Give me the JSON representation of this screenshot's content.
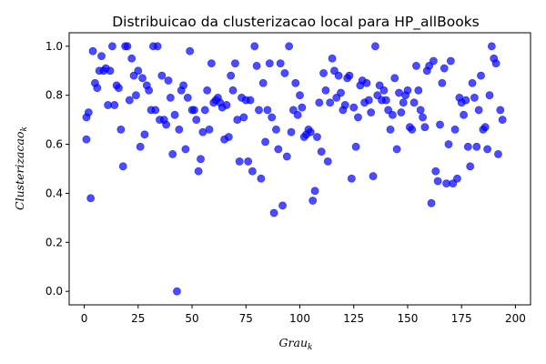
{
  "chart_data": {
    "type": "scatter",
    "title": "Distribuicao da clusterizacao local para HP_allBooks",
    "xlabel": "Grau",
    "xlabel_sub": "k",
    "ylabel": "Clusterizacao",
    "ylabel_sub": "k",
    "xlim": [
      -7,
      207
    ],
    "ylim": [
      -0.055,
      1.055
    ],
    "xticks": [
      0,
      25,
      50,
      75,
      100,
      125,
      150,
      175,
      200
    ],
    "yticks": [
      0.0,
      0.2,
      0.4,
      0.6,
      0.8,
      1.0
    ],
    "ytick_labels": [
      "0.0",
      "0.2",
      "0.4",
      "0.6",
      "0.8",
      "1.0"
    ],
    "grid": false,
    "marker_color": "#0000ff",
    "marker_opacity": 0.7,
    "points": [
      [
        1,
        0.71
      ],
      [
        1,
        0.62
      ],
      [
        2,
        0.73
      ],
      [
        3,
        0.38
      ],
      [
        4,
        0.98
      ],
      [
        5,
        0.85
      ],
      [
        6,
        0.83
      ],
      [
        7,
        0.9
      ],
      [
        8,
        0.96
      ],
      [
        9,
        0.9
      ],
      [
        10,
        0.91
      ],
      [
        11,
        0.76
      ],
      [
        12,
        0.9
      ],
      [
        13,
        1.0
      ],
      [
        14,
        0.76
      ],
      [
        15,
        0.84
      ],
      [
        16,
        0.83
      ],
      [
        17,
        0.66
      ],
      [
        18,
        0.51
      ],
      [
        19,
        1.0
      ],
      [
        20,
        1.0
      ],
      [
        21,
        0.78
      ],
      [
        22,
        0.95
      ],
      [
        23,
        0.88
      ],
      [
        24,
        0.8
      ],
      [
        25,
        0.9
      ],
      [
        26,
        0.59
      ],
      [
        27,
        0.87
      ],
      [
        28,
        0.64
      ],
      [
        29,
        0.84
      ],
      [
        30,
        0.82
      ],
      [
        31,
        0.74
      ],
      [
        32,
        1.0
      ],
      [
        33,
        0.74
      ],
      [
        34,
        1.0
      ],
      [
        35,
        0.7
      ],
      [
        36,
        0.88
      ],
      [
        37,
        0.7
      ],
      [
        38,
        0.68
      ],
      [
        39,
        0.86
      ],
      [
        40,
        0.79
      ],
      [
        41,
        0.56
      ],
      [
        42,
        0.72
      ],
      [
        43,
        0.0
      ],
      [
        44,
        0.66
      ],
      [
        45,
        0.82
      ],
      [
        46,
        0.84
      ],
      [
        47,
        0.58
      ],
      [
        48,
        0.79
      ],
      [
        49,
        0.98
      ],
      [
        50,
        0.74
      ],
      [
        51,
        0.74
      ],
      [
        52,
        0.7
      ],
      [
        53,
        0.49
      ],
      [
        54,
        0.54
      ],
      [
        55,
        0.65
      ],
      [
        56,
        0.74
      ],
      [
        57,
        0.82
      ],
      [
        58,
        0.66
      ],
      [
        59,
        0.93
      ],
      [
        60,
        0.77
      ],
      [
        61,
        0.78
      ],
      [
        62,
        0.79
      ],
      [
        63,
        0.77
      ],
      [
        64,
        0.75
      ],
      [
        65,
        0.62
      ],
      [
        66,
        0.76
      ],
      [
        67,
        0.63
      ],
      [
        68,
        0.88
      ],
      [
        69,
        0.82
      ],
      [
        70,
        0.93
      ],
      [
        71,
        0.7
      ],
      [
        72,
        0.53
      ],
      [
        73,
        0.79
      ],
      [
        74,
        0.71
      ],
      [
        75,
        0.78
      ],
      [
        76,
        0.53
      ],
      [
        77,
        0.78
      ],
      [
        78,
        0.49
      ],
      [
        79,
        1.0
      ],
      [
        80,
        0.92
      ],
      [
        81,
        0.74
      ],
      [
        82,
        0.46
      ],
      [
        83,
        0.85
      ],
      [
        84,
        0.61
      ],
      [
        85,
        0.74
      ],
      [
        86,
        0.93
      ],
      [
        87,
        0.71
      ],
      [
        88,
        0.32
      ],
      [
        89,
        0.66
      ],
      [
        90,
        0.58
      ],
      [
        91,
        0.93
      ],
      [
        92,
        0.35
      ],
      [
        93,
        0.89
      ],
      [
        94,
        0.55
      ],
      [
        95,
        1.0
      ],
      [
        96,
        0.65
      ],
      [
        97,
        0.74
      ],
      [
        98,
        0.85
      ],
      [
        99,
        0.72
      ],
      [
        100,
        0.8
      ],
      [
        101,
        0.75
      ],
      [
        102,
        0.63
      ],
      [
        103,
        0.64
      ],
      [
        104,
        0.66
      ],
      [
        105,
        0.65
      ],
      [
        106,
        0.37
      ],
      [
        107,
        0.41
      ],
      [
        108,
        0.63
      ],
      [
        109,
        0.77
      ],
      [
        110,
        0.57
      ],
      [
        111,
        0.89
      ],
      [
        112,
        0.82
      ],
      [
        113,
        0.53
      ],
      [
        114,
        0.77
      ],
      [
        115,
        0.95
      ],
      [
        116,
        0.9
      ],
      [
        117,
        0.79
      ],
      [
        118,
        0.88
      ],
      [
        119,
        0.81
      ],
      [
        120,
        0.74
      ],
      [
        121,
        0.76
      ],
      [
        122,
        0.87
      ],
      [
        123,
        0.88
      ],
      [
        124,
        0.46
      ],
      [
        125,
        0.75
      ],
      [
        126,
        0.59
      ],
      [
        127,
        0.71
      ],
      [
        128,
        0.84
      ],
      [
        129,
        0.86
      ],
      [
        130,
        0.77
      ],
      [
        131,
        0.85
      ],
      [
        132,
        0.78
      ],
      [
        133,
        0.73
      ],
      [
        134,
        0.47
      ],
      [
        135,
        1.0
      ],
      [
        136,
        0.8
      ],
      [
        137,
        0.84
      ],
      [
        138,
        0.78
      ],
      [
        139,
        0.82
      ],
      [
        140,
        0.78
      ],
      [
        141,
        0.74
      ],
      [
        142,
        0.66
      ],
      [
        143,
        0.72
      ],
      [
        144,
        0.87
      ],
      [
        145,
        0.58
      ],
      [
        146,
        0.81
      ],
      [
        147,
        0.73
      ],
      [
        148,
        0.77
      ],
      [
        149,
        0.8
      ],
      [
        150,
        0.82
      ],
      [
        151,
        0.67
      ],
      [
        152,
        0.66
      ],
      [
        153,
        0.77
      ],
      [
        154,
        0.92
      ],
      [
        155,
        0.82
      ],
      [
        156,
        0.74
      ],
      [
        157,
        0.71
      ],
      [
        158,
        0.67
      ],
      [
        159,
        0.9
      ],
      [
        160,
        0.92
      ],
      [
        161,
        0.36
      ],
      [
        162,
        0.94
      ],
      [
        163,
        0.49
      ],
      [
        164,
        0.45
      ],
      [
        165,
        0.68
      ],
      [
        166,
        0.85
      ],
      [
        167,
        0.91
      ],
      [
        168,
        0.44
      ],
      [
        169,
        0.6
      ],
      [
        170,
        0.94
      ],
      [
        171,
        0.44
      ],
      [
        172,
        0.66
      ],
      [
        173,
        0.46
      ],
      [
        174,
        0.79
      ],
      [
        175,
        0.77
      ],
      [
        176,
        0.72
      ],
      [
        177,
        0.78
      ],
      [
        178,
        0.59
      ],
      [
        179,
        0.51
      ],
      [
        180,
        0.85
      ],
      [
        181,
        0.79
      ],
      [
        182,
        0.59
      ],
      [
        183,
        0.74
      ],
      [
        184,
        0.88
      ],
      [
        185,
        0.66
      ],
      [
        186,
        0.67
      ],
      [
        187,
        0.58
      ],
      [
        188,
        0.8
      ],
      [
        189,
        1.0
      ],
      [
        190,
        0.95
      ],
      [
        191,
        0.93
      ],
      [
        192,
        0.56
      ],
      [
        193,
        0.74
      ],
      [
        194,
        0.7
      ]
    ]
  }
}
